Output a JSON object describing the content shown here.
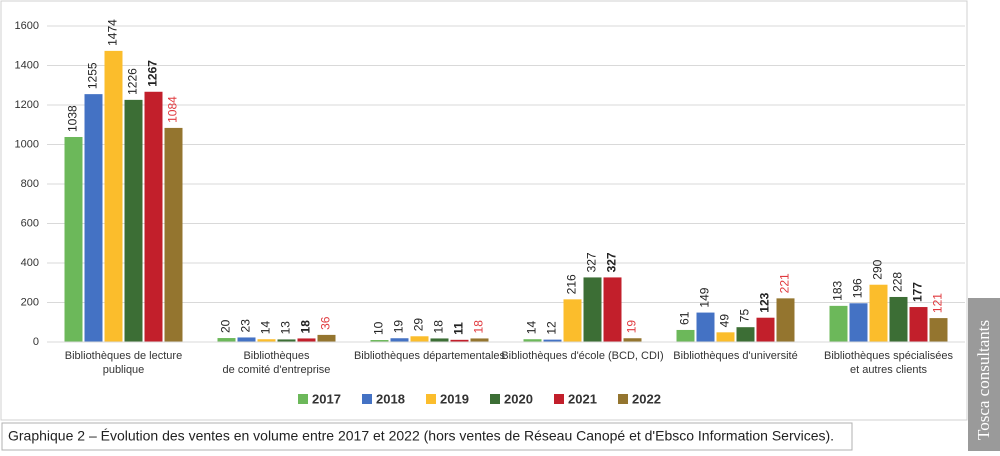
{
  "chart_data": {
    "type": "bar",
    "categories": [
      [
        "Bibliothèques de lecture",
        "publique"
      ],
      [
        "Bibliothèques",
        "de comité d'entreprise"
      ],
      [
        "Bibliothèques départementales"
      ],
      [
        "Bibliothèques d'école (BCD, CDI)"
      ],
      [
        "Bibliothèques d'université"
      ],
      [
        "Bibliothèques spécialisées",
        "et autres clients"
      ]
    ],
    "series": [
      {
        "name": "2017",
        "color": "#6cb85a",
        "values": [
          1038,
          20,
          10,
          14,
          61,
          183
        ]
      },
      {
        "name": "2018",
        "color": "#4472c4",
        "values": [
          1255,
          23,
          19,
          12,
          149,
          196
        ]
      },
      {
        "name": "2019",
        "color": "#fbbd2c",
        "values": [
          1474,
          14,
          29,
          216,
          49,
          290
        ]
      },
      {
        "name": "2020",
        "color": "#3c6e35",
        "values": [
          1226,
          13,
          18,
          327,
          75,
          228
        ]
      },
      {
        "name": "2021",
        "color": "#c21f2b",
        "values": [
          1267,
          18,
          11,
          327,
          123,
          177
        ],
        "label_weight": "bold"
      },
      {
        "name": "2022",
        "color": "#94752f",
        "values": [
          1084,
          36,
          18,
          19,
          221,
          121
        ],
        "label_color": "#e0393e"
      }
    ],
    "ylim": [
      0,
      1600
    ],
    "yticks": [
      0,
      200,
      400,
      600,
      800,
      1000,
      1200,
      1400,
      1600
    ],
    "grid": true
  },
  "caption": "Graphique 2 – Évolution des ventes en volume entre 2017 et 2022 (hors ventes de Réseau Canopé et d'Ebsco Information Services).",
  "side_label": "Tosca consultants"
}
